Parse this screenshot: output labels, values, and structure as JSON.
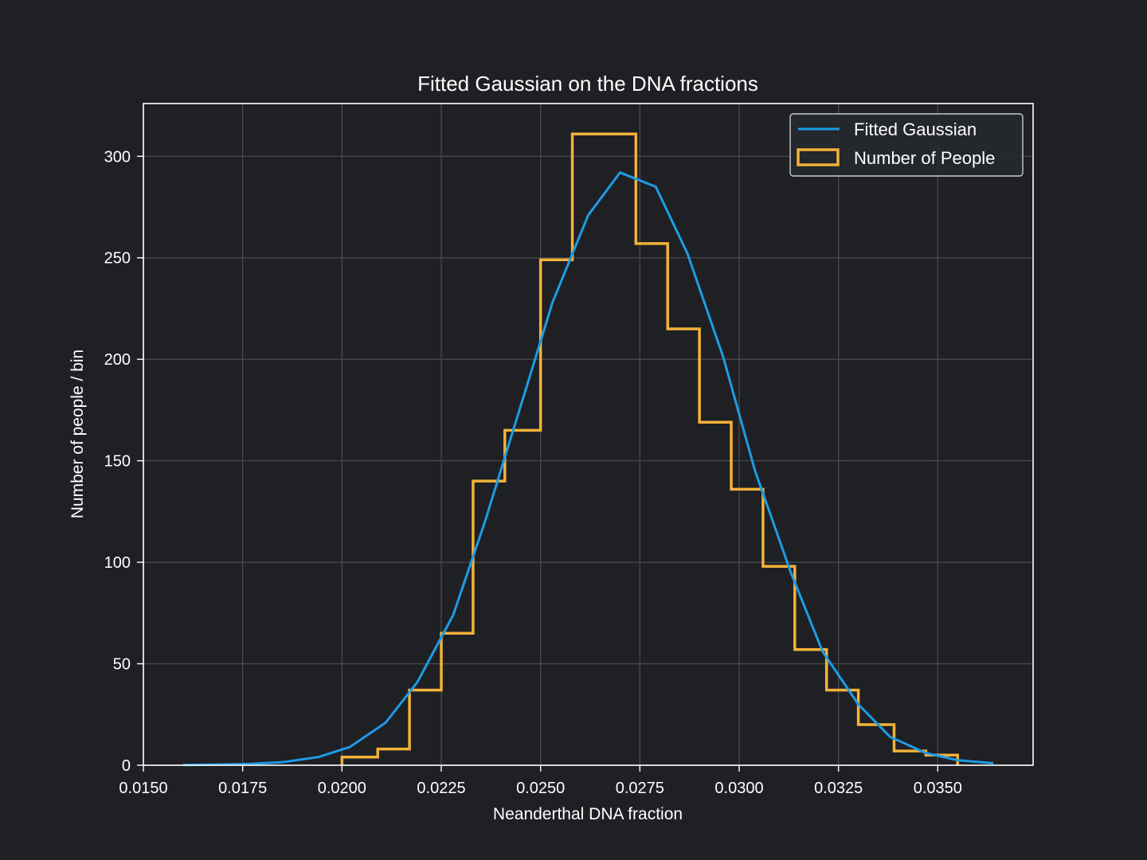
{
  "colors": {
    "background": "#1e2024",
    "grid": "#4a4a4a",
    "axis": "#ffffff",
    "text": "#ffffff",
    "gaussian": "#1e9be6",
    "histogram": "#f2b13a",
    "legend_bg": "#26292d",
    "legend_border": "#cccccc"
  },
  "chart_data": {
    "type": "line",
    "title": "Fitted Gaussian on the DNA fractions",
    "xlabel": "Neanderthal DNA fraction",
    "ylabel": "Number of people / bin",
    "xlim": [
      0.015,
      0.0374
    ],
    "ylim": [
      0,
      326
    ],
    "xticks": [
      0.015,
      0.0175,
      0.02,
      0.0225,
      0.025,
      0.0275,
      0.03,
      0.0325,
      0.035
    ],
    "xtick_labels": [
      "0.0150",
      "0.0175",
      "0.0200",
      "0.0225",
      "0.0250",
      "0.0275",
      "0.0300",
      "0.0325",
      "0.0350"
    ],
    "yticks": [
      0,
      50,
      100,
      150,
      200,
      250,
      300
    ],
    "ytick_labels": [
      "0",
      "50",
      "100",
      "150",
      "200",
      "250",
      "300"
    ],
    "grid": true,
    "legend_position": "top-right",
    "series": [
      {
        "name": "Fitted Gaussian",
        "kind": "line",
        "color": "#1e9be6",
        "x": [
          0.016,
          0.0168,
          0.0177,
          0.0185,
          0.0194,
          0.0202,
          0.0211,
          0.0219,
          0.0228,
          0.0236,
          0.0245,
          0.0253,
          0.0262,
          0.027,
          0.0279,
          0.0287,
          0.0296,
          0.0304,
          0.0313,
          0.0321,
          0.033,
          0.0338,
          0.0347,
          0.0355,
          0.0364
        ],
        "y": [
          0.1,
          0.3,
          0.7,
          1.5,
          4,
          9,
          21,
          41,
          74,
          120,
          177,
          228,
          271,
          292,
          285,
          252,
          201,
          145,
          95,
          56,
          30,
          14,
          6,
          2.5,
          1
        ]
      },
      {
        "name": "Number of People",
        "kind": "step-histogram",
        "color": "#f2b13a",
        "bin_edges": [
          0.02,
          0.0209,
          0.0217,
          0.0225,
          0.0233,
          0.0241,
          0.025,
          0.0258,
          0.0266,
          0.0274,
          0.0282,
          0.029,
          0.0298,
          0.0306,
          0.0314,
          0.0322,
          0.033,
          0.0339,
          0.0347,
          0.0355
        ],
        "counts": [
          4,
          8,
          37,
          65,
          140,
          165,
          249,
          311,
          311,
          257,
          215,
          169,
          136,
          98,
          57,
          37,
          20,
          7,
          5
        ]
      }
    ]
  }
}
